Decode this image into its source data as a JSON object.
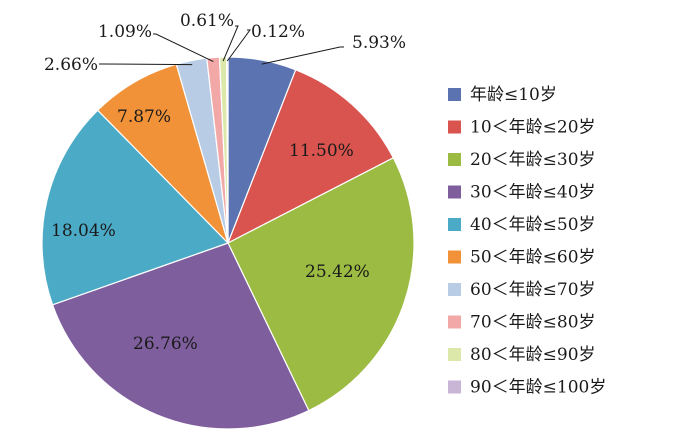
{
  "chart_data": {
    "type": "pie",
    "categories": [
      "年龄≤10岁",
      "10＜年龄≤20岁",
      "20＜年龄≤30岁",
      "30＜年龄≤40岁",
      "40＜年龄≤50岁",
      "50＜年龄≤60岁",
      "60＜年龄≤70岁",
      "70＜年龄≤80岁",
      "80＜年龄≤90岁",
      "90＜年龄≤100岁"
    ],
    "values": [
      5.93,
      11.5,
      25.42,
      26.76,
      18.04,
      7.87,
      2.66,
      1.09,
      0.61,
      0.12
    ],
    "labels": [
      "5.93%",
      "11.50%",
      "25.42%",
      "26.76%",
      "18.04%",
      "7.87%",
      "2.66%",
      "1.09%",
      "0.61%",
      "0.12%"
    ],
    "colors": [
      "#5B74B1",
      "#D9534F",
      "#9BBB42",
      "#7F5E9E",
      "#4BAAC6",
      "#F19138",
      "#B9CCE6",
      "#F2A8A6",
      "#DCE8A9",
      "#C9B6D7"
    ],
    "legend_position": "right"
  }
}
